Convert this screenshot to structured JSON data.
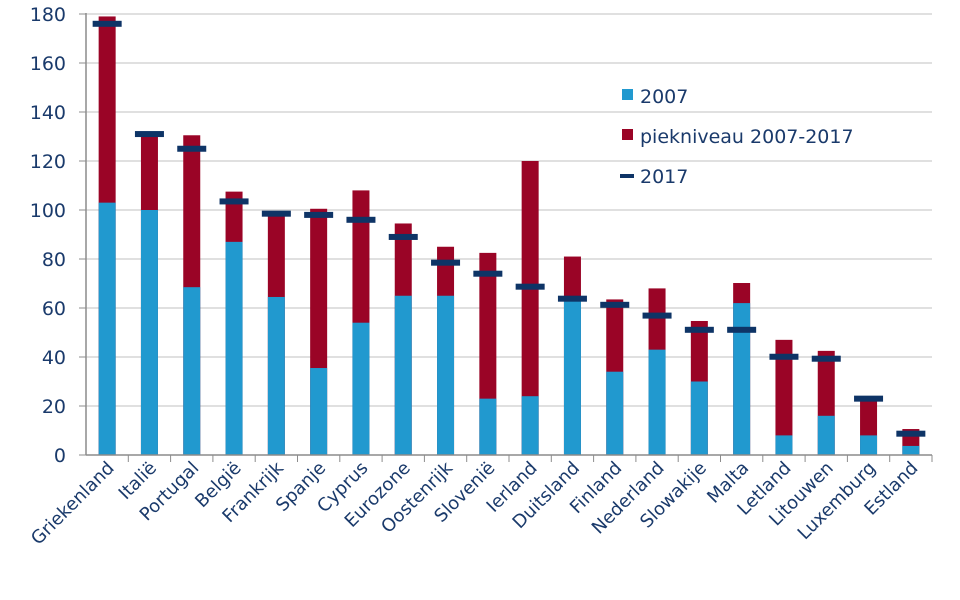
{
  "chart_data": {
    "type": "bar",
    "title": "",
    "xlabel": "",
    "ylabel": "",
    "ylim": [
      0,
      180
    ],
    "yticks": [
      0,
      20,
      40,
      60,
      80,
      100,
      120,
      140,
      160,
      180
    ],
    "grid": true,
    "legend_position": "right-center",
    "categories": [
      "Griekenland",
      "Italië",
      "Portugal",
      "België",
      "Frankrijk",
      "Spanje",
      "Cyprus",
      "Eurozone",
      "Oostenrijk",
      "Slovenië",
      "Ierland",
      "Duitsland",
      "Finland",
      "Nederland",
      "Slowakije",
      "Malta",
      "Letland",
      "Litouwen",
      "Luxemburg",
      "Estland"
    ],
    "series": [
      {
        "name": "2007",
        "kind": "bar",
        "color": "#2199cf",
        "values": [
          103,
          100,
          68.5,
          87,
          64.5,
          35.5,
          54,
          65,
          65,
          23,
          24,
          63,
          34,
          43,
          30,
          62,
          8,
          16,
          8,
          3.7
        ]
      },
      {
        "name": "piekniveau 2007-2017",
        "kind": "bar",
        "color": "#9a0426",
        "values": [
          179,
          131,
          130.5,
          107.5,
          98.5,
          100.5,
          108,
          94.5,
          85,
          82.5,
          120,
          81,
          63.5,
          68,
          54.7,
          70.2,
          47,
          42.5,
          23,
          10.6
        ]
      },
      {
        "name": "2017",
        "kind": "marker",
        "color": "#0e3466",
        "values": [
          176,
          131,
          125,
          103.5,
          98.5,
          98,
          96,
          89,
          78.5,
          74,
          68.7,
          63.8,
          61.3,
          56.9,
          51.1,
          51.1,
          40.1,
          39.3,
          23,
          8.7
        ]
      }
    ]
  }
}
